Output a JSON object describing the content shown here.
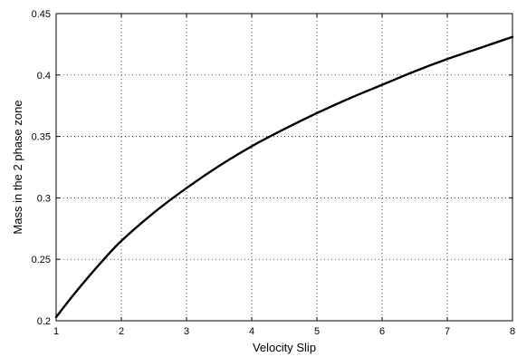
{
  "chart_data": {
    "type": "line",
    "title": "",
    "xlabel": "Velocity Slip",
    "ylabel": "Mass in the 2 phase zone",
    "xlim": [
      1,
      8
    ],
    "ylim": [
      0.2,
      0.45
    ],
    "grid": true,
    "x_ticks": [
      "1",
      "2",
      "3",
      "4",
      "5",
      "6",
      "7",
      "8"
    ],
    "y_ticks": [
      "0.2",
      "0.25",
      "0.3",
      "0.35",
      "0.4",
      "0.45"
    ],
    "line_color": "#000000",
    "series": [
      {
        "x": [
          1,
          1.25,
          1.5,
          1.75,
          2,
          2.5,
          3,
          3.5,
          4,
          4.5,
          5,
          5.5,
          6,
          6.5,
          7,
          7.5,
          8
        ],
        "y": [
          0.203,
          0.22,
          0.236,
          0.251,
          0.265,
          0.288,
          0.308,
          0.326,
          0.342,
          0.356,
          0.369,
          0.381,
          0.392,
          0.403,
          0.413,
          0.422,
          0.431
        ]
      }
    ]
  }
}
